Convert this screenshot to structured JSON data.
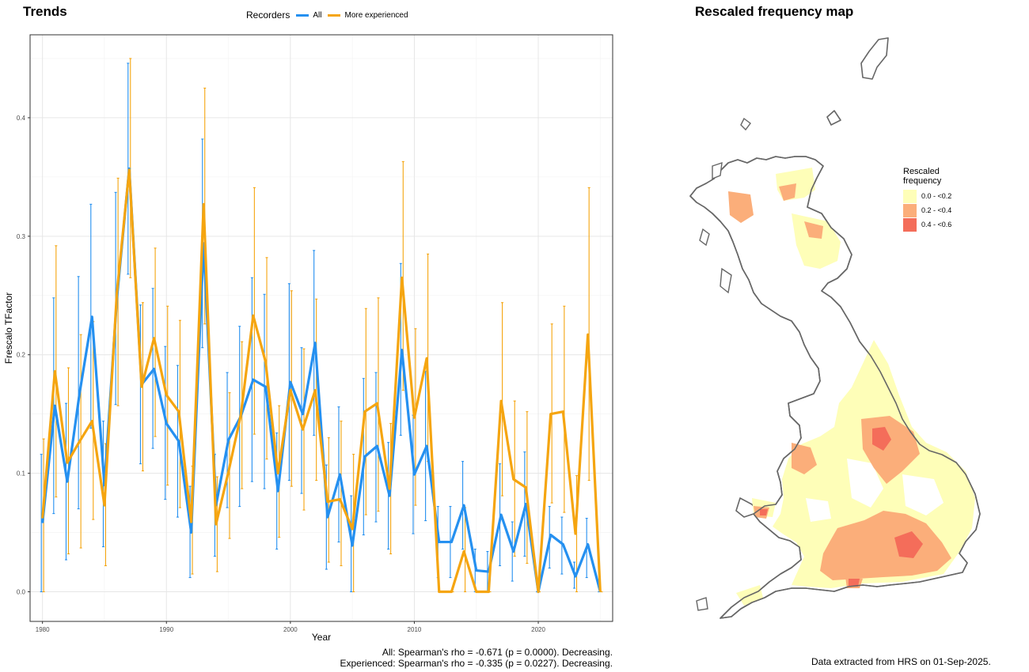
{
  "trends_title": "Trends",
  "map_title": "Rescaled frequency map",
  "legend": {
    "title": "Recorders",
    "items": [
      {
        "label": "All",
        "color": "#2590f0"
      },
      {
        "label": "More experienced",
        "color": "#f5a510"
      }
    ]
  },
  "stats": {
    "line1": "All: Spearman's rho = -0.671 (p = 0.0000). Decreasing.",
    "line2": "Experienced: Spearman's rho = -0.335 (p = 0.0227). Decreasing."
  },
  "data_note": "Data extracted from HRS on 01-Sep-2025.",
  "map_legend": {
    "title": "Rescaled frequency",
    "items": [
      {
        "label": "0.0 - <0.2",
        "color": "#fefeb8"
      },
      {
        "label": "0.2 - <0.4",
        "color": "#fbae7a"
      },
      {
        "label": "0.4 - <0.6",
        "color": "#f46d5a"
      }
    ]
  },
  "chart_data": {
    "type": "line",
    "xlabel": "Year",
    "ylabel": "Frescalo TFactor",
    "xlim": [
      1979,
      2026
    ],
    "ylim": [
      -0.025,
      0.47
    ],
    "xticks": [
      1980,
      1990,
      2000,
      2010,
      2020
    ],
    "yticks": [
      0.0,
      0.1,
      0.2,
      0.3,
      0.4
    ],
    "grid": true,
    "legend_position": "top",
    "x": [
      1980,
      1981,
      1982,
      1983,
      1984,
      1985,
      1986,
      1987,
      1988,
      1989,
      1990,
      1991,
      1992,
      1993,
      1994,
      1995,
      1996,
      1997,
      1998,
      1999,
      2000,
      2001,
      2002,
      2003,
      2004,
      2005,
      2006,
      2007,
      2008,
      2009,
      2010,
      2011,
      2012,
      2013,
      2014,
      2015,
      2016,
      2017,
      2018,
      2019,
      2020,
      2021,
      2022,
      2023,
      2024,
      2025
    ],
    "series": [
      {
        "name": "All",
        "color": "#2590f0",
        "values": [
          0.058,
          0.157,
          0.093,
          0.168,
          0.232,
          0.09,
          0.247,
          0.357,
          0.175,
          0.188,
          0.142,
          0.127,
          0.05,
          0.294,
          0.073,
          0.128,
          0.148,
          0.179,
          0.173,
          0.085,
          0.177,
          0.15,
          0.21,
          0.063,
          0.099,
          0.039,
          0.114,
          0.123,
          0.081,
          0.204,
          0.099,
          0.123,
          0.042,
          0.042,
          0.073,
          0.018,
          0.017,
          0.065,
          0.034,
          0.074,
          0.0,
          0.048,
          0.04,
          0.013,
          0.04,
          0.0
        ],
        "lower": [
          0.0,
          0.066,
          0.027,
          0.07,
          0.138,
          0.038,
          0.158,
          0.268,
          0.108,
          0.121,
          0.078,
          0.063,
          0.012,
          0.206,
          0.03,
          0.071,
          0.072,
          0.093,
          0.087,
          0.036,
          0.094,
          0.083,
          0.132,
          0.019,
          0.042,
          0.0,
          0.048,
          0.059,
          0.036,
          0.132,
          0.049,
          0.06,
          0.012,
          0.012,
          0.036,
          0.0,
          0.0,
          0.022,
          0.009,
          0.03,
          0.0,
          0.02,
          0.015,
          0.003,
          0.012,
          0.0
        ],
        "upper": [
          0.116,
          0.248,
          0.159,
          0.266,
          0.327,
          0.144,
          0.337,
          0.446,
          0.242,
          0.256,
          0.207,
          0.191,
          0.089,
          0.382,
          0.116,
          0.185,
          0.224,
          0.265,
          0.251,
          0.134,
          0.26,
          0.206,
          0.288,
          0.107,
          0.156,
          0.081,
          0.18,
          0.185,
          0.126,
          0.277,
          0.149,
          0.186,
          0.072,
          0.072,
          0.11,
          0.036,
          0.034,
          0.108,
          0.059,
          0.118,
          0.0,
          0.072,
          0.063,
          0.025,
          0.062,
          0.0
        ]
      },
      {
        "name": "More experienced",
        "color": "#f5a510",
        "values": [
          0.062,
          0.186,
          0.109,
          0.127,
          0.144,
          0.073,
          0.252,
          0.356,
          0.173,
          0.214,
          0.166,
          0.152,
          0.059,
          0.327,
          0.057,
          0.101,
          0.149,
          0.233,
          0.194,
          0.1,
          0.17,
          0.137,
          0.17,
          0.076,
          0.078,
          0.053,
          0.152,
          0.159,
          0.087,
          0.265,
          0.147,
          0.197,
          0.0,
          0.0,
          0.034,
          0.0,
          0.0,
          0.161,
          0.095,
          0.088,
          0.0,
          0.15,
          0.152,
          0.049,
          0.217,
          0.0
        ],
        "lower": [
          0.0,
          0.08,
          0.032,
          0.037,
          0.061,
          0.022,
          0.157,
          0.265,
          0.102,
          0.131,
          0.09,
          0.071,
          0.015,
          0.226,
          0.017,
          0.045,
          0.087,
          0.133,
          0.112,
          0.046,
          0.089,
          0.069,
          0.094,
          0.025,
          0.022,
          0.0,
          0.065,
          0.068,
          0.032,
          0.17,
          0.073,
          0.11,
          0.0,
          0.0,
          0.0,
          0.0,
          0.0,
          0.081,
          0.03,
          0.024,
          0.0,
          0.075,
          0.067,
          0.0,
          0.094,
          0.0
        ],
        "upper": [
          0.129,
          0.292,
          0.189,
          0.217,
          0.228,
          0.125,
          0.349,
          0.45,
          0.244,
          0.29,
          0.241,
          0.229,
          0.106,
          0.425,
          0.097,
          0.168,
          0.211,
          0.341,
          0.282,
          0.157,
          0.254,
          0.205,
          0.247,
          0.13,
          0.144,
          0.116,
          0.239,
          0.248,
          0.142,
          0.363,
          0.222,
          0.285,
          0.0,
          0.0,
          0.071,
          0.0,
          0.0,
          0.244,
          0.161,
          0.152,
          0.0,
          0.226,
          0.241,
          0.098,
          0.341,
          0.0
        ]
      }
    ]
  }
}
